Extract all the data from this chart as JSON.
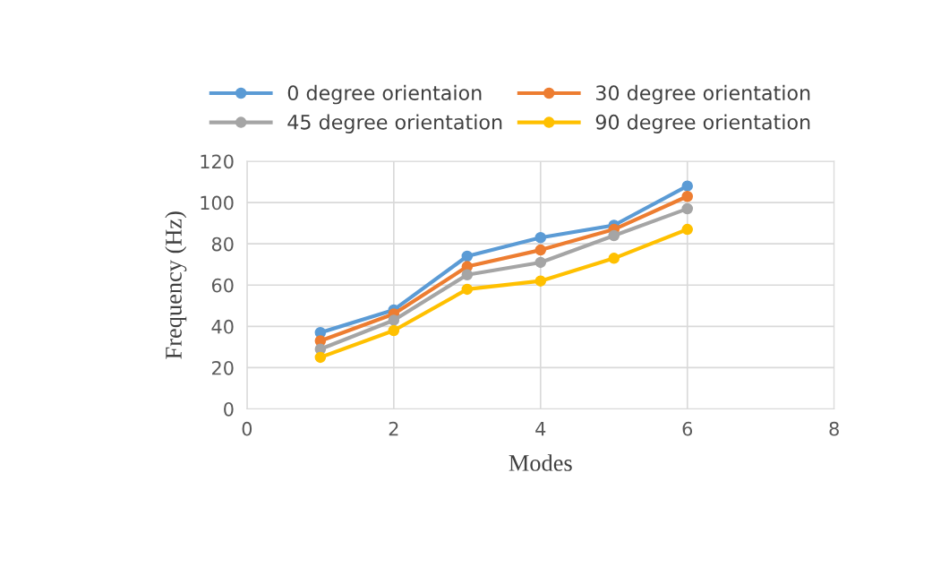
{
  "chart_data": {
    "type": "line",
    "xlabel": "Modes",
    "ylabel": "Frequency (Hz)",
    "x": [
      1,
      2,
      3,
      4,
      5,
      6
    ],
    "series": [
      {
        "name": "0 degree orientaion",
        "color": "#5b9bd5",
        "values": [
          37,
          48,
          74,
          83,
          89,
          108
        ]
      },
      {
        "name": "30 degree orientation",
        "color": "#ed7d31",
        "values": [
          33,
          46,
          69,
          77,
          87,
          103
        ]
      },
      {
        "name": "45 degree orientation",
        "color": "#a5a5a5",
        "values": [
          29,
          43,
          65,
          71,
          84,
          97
        ]
      },
      {
        "name": "90 degree orientation",
        "color": "#ffc000",
        "values": [
          25,
          38,
          58,
          62,
          73,
          87
        ]
      }
    ],
    "xlim": [
      0,
      8
    ],
    "xticks": [
      0,
      2,
      4,
      6,
      8
    ],
    "ylim": [
      0,
      120
    ],
    "yticks": [
      0,
      20,
      40,
      60,
      80,
      100,
      120
    ],
    "grid": true,
    "legend": "top",
    "marker": "circle",
    "line_style": "solid"
  }
}
